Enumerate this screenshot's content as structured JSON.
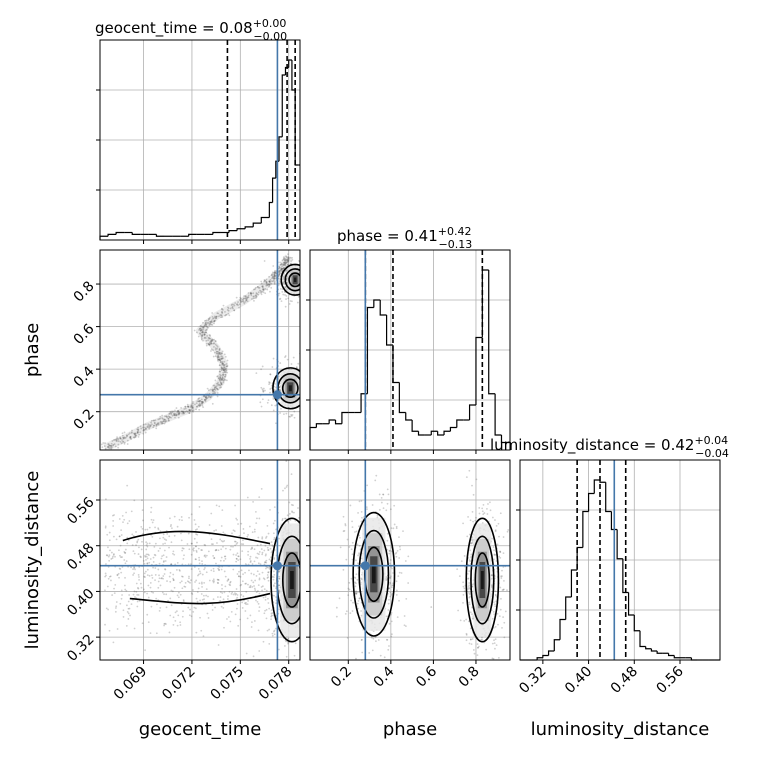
{
  "chart_data": {
    "type": "corner",
    "colors": {
      "truth": "#4477aa",
      "hist": "#000000",
      "grid": "#b0b0b0",
      "scatter": "#555555"
    },
    "parameters": [
      "geocent_time",
      "phase",
      "luminosity_distance"
    ],
    "truths": {
      "geocent_time": 0.0773,
      "phase": 0.28,
      "luminosity_distance": 0.445
    },
    "titles": [
      {
        "param": "geocent_time",
        "text": "geocent_time = 0.08",
        "sup": "+0.00",
        "sub": "−0.00"
      },
      {
        "param": "phase",
        "text": "phase = 0.41",
        "sup": "+0.42",
        "sub": "−0.13"
      },
      {
        "param": "luminosity_distance",
        "text": "luminosity_distance = 0.42",
        "sup": "+0.04",
        "sub": "−0.04"
      }
    ],
    "axes": {
      "geocent_time": {
        "range": [
          0.0663,
          0.0787
        ],
        "ticks": [
          0.069,
          0.072,
          0.075,
          0.078
        ],
        "tick_labels": [
          "0.069",
          "0.072",
          "0.075",
          "0.078"
        ],
        "label": "geocent_time"
      },
      "phase": {
        "range": [
          0.02,
          0.96
        ],
        "ticks": [
          0.2,
          0.4,
          0.6,
          0.8
        ],
        "tick_labels": [
          "0.2",
          "0.4",
          "0.6",
          "0.8"
        ],
        "label": "phase"
      },
      "luminosity_distance": {
        "range": [
          0.28,
          0.63
        ],
        "ticks": [
          0.32,
          0.4,
          0.48,
          0.56
        ],
        "tick_labels": [
          "0.32",
          "0.40",
          "0.48",
          "0.56"
        ],
        "label": "luminosity_distance"
      }
    },
    "quantiles": {
      "geocent_time": [
        0.0742,
        0.0779,
        0.0784
      ],
      "phase": [
        0.28,
        0.41,
        0.83
      ],
      "luminosity_distance": [
        0.38,
        0.42,
        0.465
      ]
    },
    "histograms": {
      "geocent_time": {
        "edges": [
          0.0663,
          0.0668,
          0.0673,
          0.0678,
          0.0683,
          0.0688,
          0.0693,
          0.0698,
          0.0703,
          0.0708,
          0.0713,
          0.0718,
          0.0723,
          0.0728,
          0.0733,
          0.0738,
          0.0743,
          0.0748,
          0.0753,
          0.0758,
          0.0763,
          0.0768,
          0.077,
          0.0772,
          0.0774,
          0.0776,
          0.0778,
          0.078,
          0.0782,
          0.0784,
          0.0786,
          0.0787
        ],
        "counts": [
          2,
          3,
          4,
          4,
          3,
          3,
          3,
          2,
          2,
          2,
          2,
          3,
          3,
          3,
          4,
          4,
          5,
          6,
          7,
          9,
          12,
          20,
          33,
          42,
          55,
          88,
          92,
          96,
          80,
          40,
          40
        ]
      },
      "phase": {
        "edges": [
          0.02,
          0.05,
          0.08,
          0.11,
          0.14,
          0.17,
          0.2,
          0.23,
          0.26,
          0.29,
          0.32,
          0.35,
          0.38,
          0.41,
          0.44,
          0.47,
          0.5,
          0.53,
          0.56,
          0.59,
          0.62,
          0.65,
          0.68,
          0.71,
          0.74,
          0.77,
          0.8,
          0.83,
          0.86,
          0.89,
          0.92,
          0.96
        ],
        "counts": [
          6,
          7,
          7,
          8,
          7,
          10,
          10,
          10,
          15,
          38,
          40,
          36,
          28,
          18,
          10,
          8,
          5,
          4,
          4,
          5,
          4,
          5,
          6,
          8,
          8,
          12,
          30,
          48,
          15,
          4,
          2
        ]
      },
      "luminosity_distance": {
        "edges": [
          0.28,
          0.29,
          0.3,
          0.31,
          0.32,
          0.33,
          0.34,
          0.35,
          0.36,
          0.37,
          0.38,
          0.39,
          0.4,
          0.41,
          0.42,
          0.43,
          0.44,
          0.45,
          0.46,
          0.47,
          0.48,
          0.49,
          0.5,
          0.51,
          0.52,
          0.53,
          0.54,
          0.55,
          0.56,
          0.57,
          0.58,
          0.59,
          0.6,
          0.61,
          0.62,
          0.63
        ],
        "counts": [
          0,
          0,
          0,
          1,
          2,
          4,
          9,
          18,
          28,
          40,
          50,
          66,
          74,
          80,
          79,
          66,
          58,
          45,
          30,
          20,
          13,
          6,
          5,
          4,
          3,
          3,
          2,
          1,
          1,
          1,
          0,
          0,
          0,
          0,
          0
        ]
      }
    },
    "density": {
      "geocent_time_phase": {
        "ridge": [
          [
            0.0666,
            0.03
          ],
          [
            0.068,
            0.08
          ],
          [
            0.0692,
            0.13
          ],
          [
            0.0705,
            0.17
          ],
          [
            0.0718,
            0.21
          ],
          [
            0.073,
            0.27
          ],
          [
            0.0738,
            0.34
          ],
          [
            0.074,
            0.42
          ],
          [
            0.0735,
            0.5
          ],
          [
            0.0725,
            0.58
          ],
          [
            0.0735,
            0.65
          ],
          [
            0.0752,
            0.72
          ],
          [
            0.0765,
            0.79
          ],
          [
            0.0775,
            0.86
          ],
          [
            0.078,
            0.93
          ]
        ],
        "blobs": [
          {
            "x": 0.0781,
            "y": 0.31,
            "sx": 0.0005,
            "sy": 0.04,
            "w": 1.0
          },
          {
            "x": 0.0784,
            "y": 0.82,
            "sx": 0.0004,
            "sy": 0.03,
            "w": 0.9
          }
        ]
      },
      "geocent_time_luminosity_distance": {
        "blobs": [
          {
            "x": 0.0782,
            "y": 0.42,
            "sx": 0.0006,
            "sy": 0.045,
            "w": 1.0
          }
        ],
        "spread": {
          "x": [
            0.0666,
            0.0787
          ],
          "y": [
            0.33,
            0.55
          ]
        }
      },
      "phase_luminosity_distance": {
        "blobs": [
          {
            "x": 0.32,
            "y": 0.43,
            "sx": 0.045,
            "sy": 0.045,
            "w": 0.95
          },
          {
            "x": 0.83,
            "y": 0.42,
            "sx": 0.035,
            "sy": 0.045,
            "w": 1.0
          }
        ]
      }
    }
  }
}
